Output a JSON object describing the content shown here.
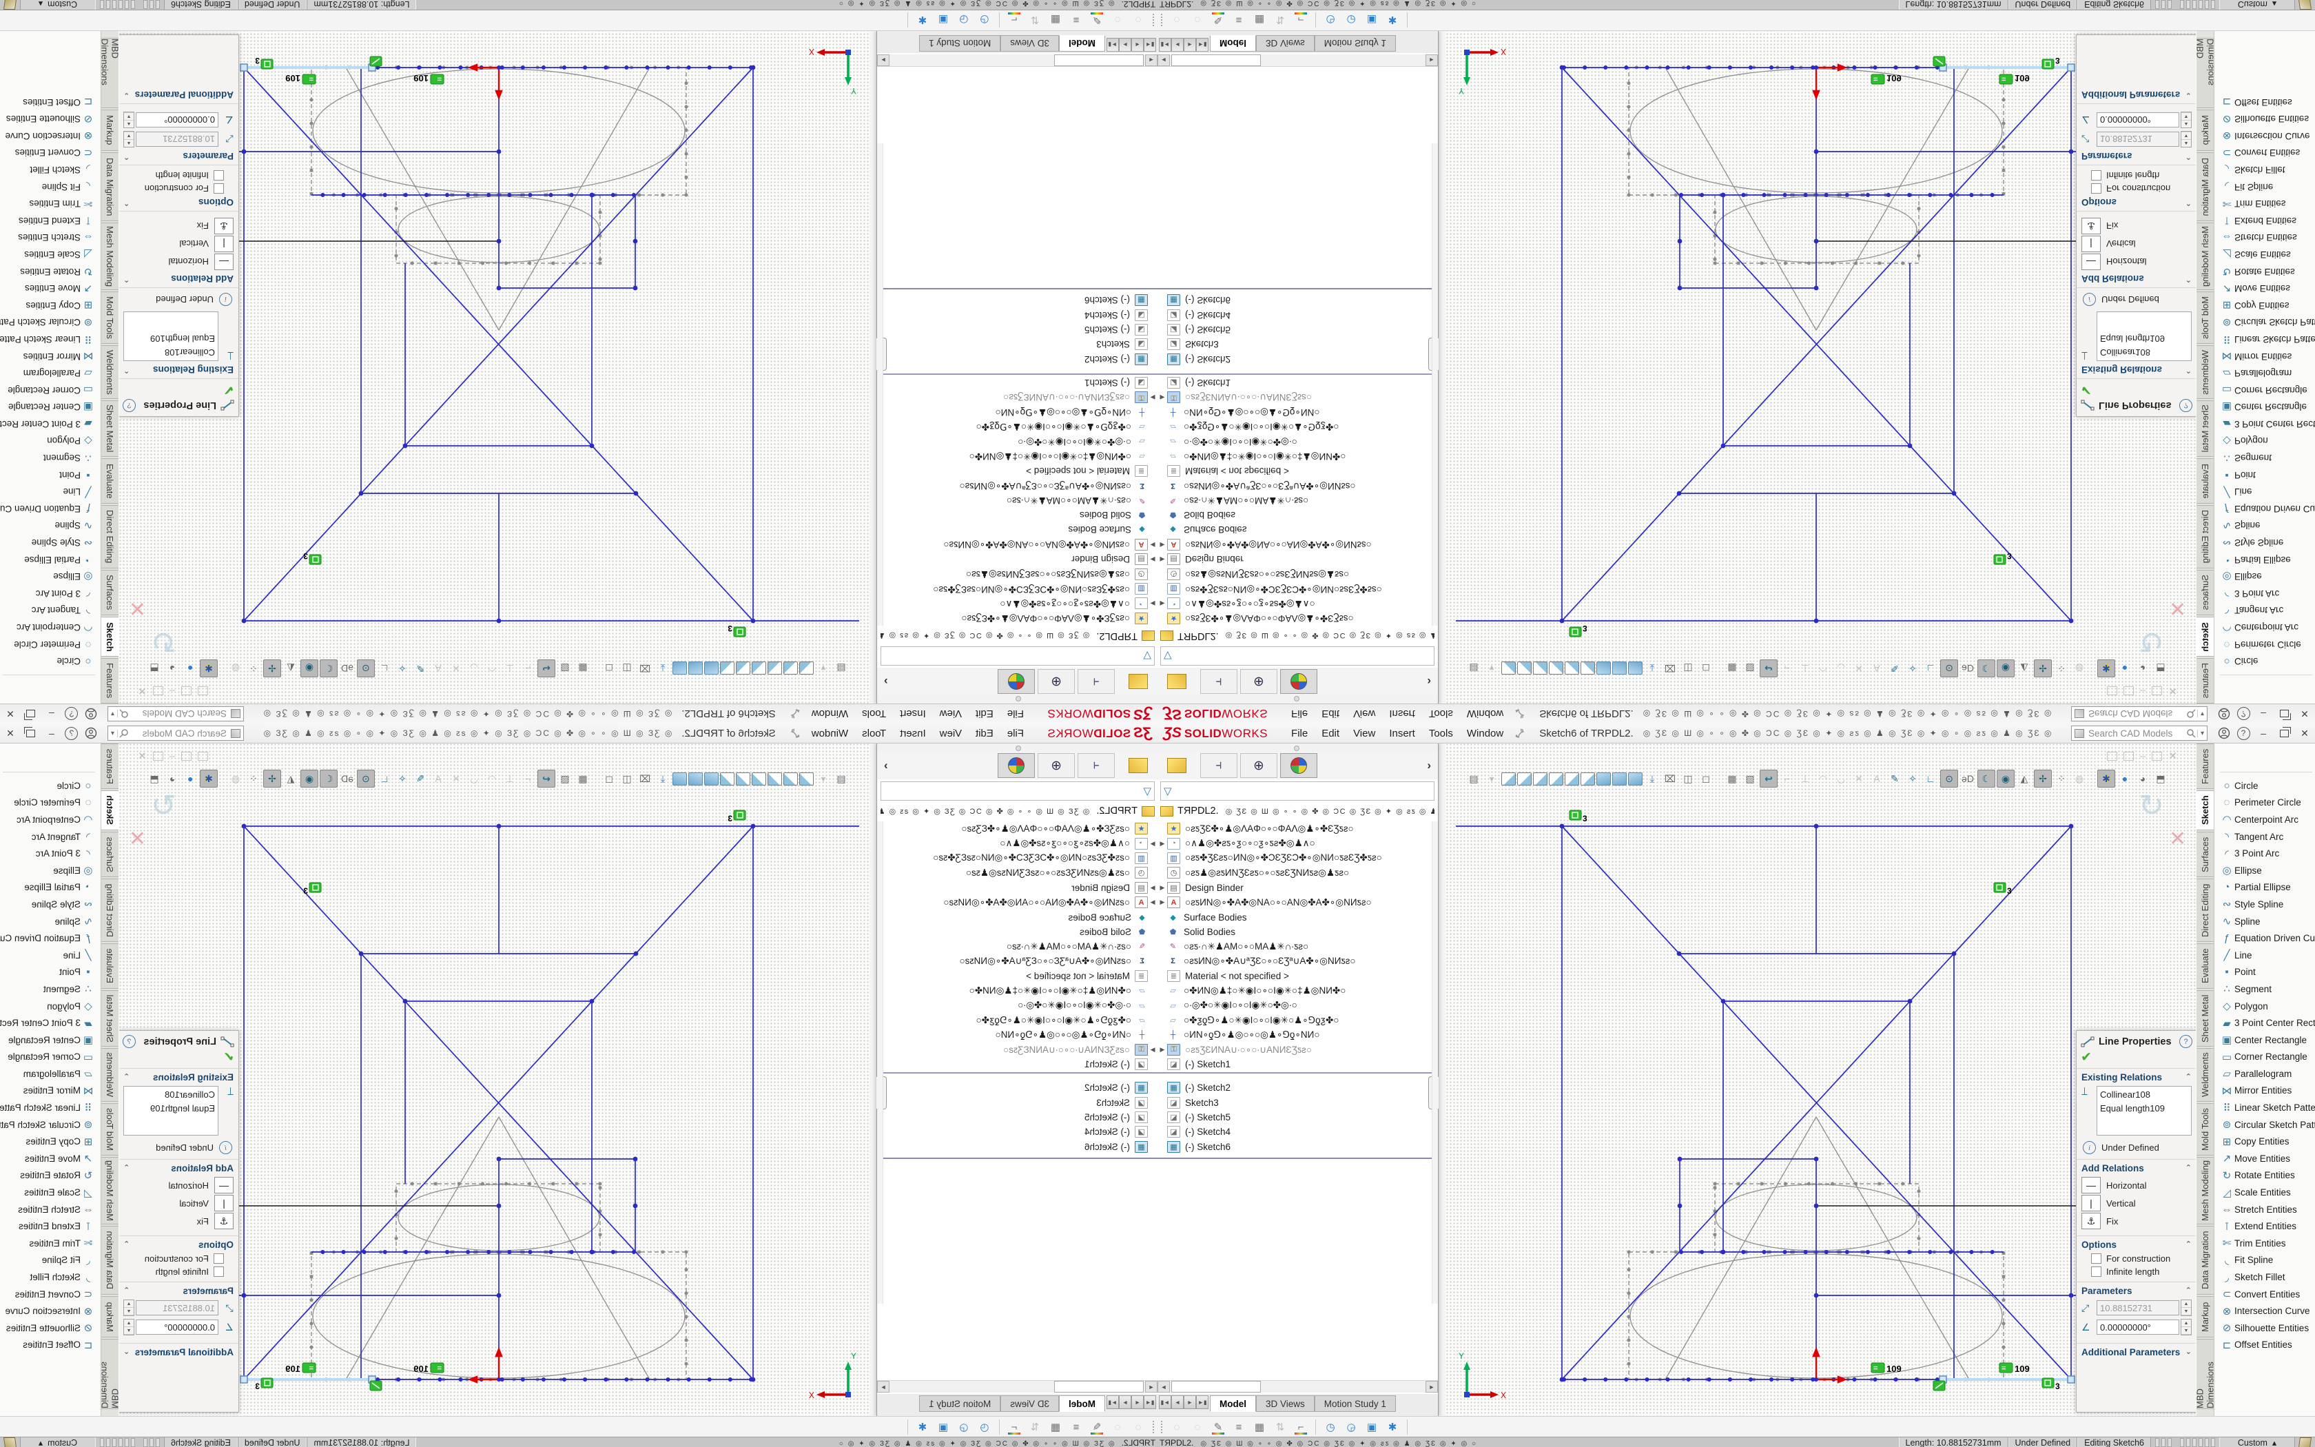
{
  "accent": {
    "sw_red": "#d0021b",
    "sketch_blue": "#2b2bc4",
    "construction_gray": "#8f8f8f",
    "selection_blue": "#b8dcf8",
    "relation_green": "#2fbe2f",
    "panel_header_navy": "#17456e"
  },
  "menubar": {
    "logo_mark": "ƷS",
    "logo_solid": "SOLID",
    "logo_works": "WORKS",
    "menus": [
      "File",
      "Edit",
      "View",
      "Insert",
      "Tools",
      "Window"
    ],
    "doc_title": "Sketch6 of TRPDL2.",
    "icon_garble": "◎ ƷƐ ◎ Ш ◎ ∘ ∘ ◎ ✤ ◎ ƆC ◎ ƷƐ ◎ ✦ ◎ ƨƽ ◎ ♟ ◎ ƷƐ ◎ ✦ ◎ ∘ ◎ ƨƽ ◎ ♟ ◎ ƷƐ ◎",
    "search_placeholder": "Search CAD Models",
    "window_buttons": {
      "minimize": "–",
      "restore": "",
      "close": "✕"
    }
  },
  "command_tabs": {
    "tabs": [
      {
        "label": "Features",
        "h": 64
      },
      {
        "label": "Sketch",
        "h": 56,
        "active": true
      },
      {
        "label": "Surfaces",
        "h": 64
      },
      {
        "label": "Direct Editing",
        "h": 90
      },
      {
        "label": "Evaluate",
        "h": 64
      },
      {
        "label": "Sheet Metal",
        "h": 80
      },
      {
        "label": "Weldments",
        "h": 76
      },
      {
        "label": "Mold Tools",
        "h": 74
      },
      {
        "label": "Mesh Modeling",
        "h": 96
      },
      {
        "label": "Data Migration",
        "h": 98
      },
      {
        "label": "Markup",
        "h": 58
      },
      {
        "label": "MBD Dimensions",
        "h": 100
      }
    ],
    "overflow_label": "⋯"
  },
  "sketch_tools": [
    {
      "name": "circle",
      "label": "Circle",
      "glyph": "○"
    },
    {
      "name": "perimeter-circle",
      "label": "Perimeter Circle",
      "glyph": "◌"
    },
    {
      "name": "centerpoint-arc",
      "label": "Centerpoint Arc",
      "glyph": "◠"
    },
    {
      "name": "tangent-arc",
      "label": "Tangent Arc",
      "glyph": "◝"
    },
    {
      "name": "3-point-arc",
      "label": "3 Point Arc",
      "glyph": "◜"
    },
    {
      "name": "ellipse",
      "label": "Ellipse",
      "glyph": "◎"
    },
    {
      "name": "partial-ellipse",
      "label": "Partial Ellipse",
      "glyph": "◔"
    },
    {
      "name": "style-spline",
      "label": "Style Spline",
      "glyph": "∾"
    },
    {
      "name": "spline",
      "label": "Spline",
      "glyph": "∿"
    },
    {
      "name": "equation-driven-curve",
      "label": "Equation Driven Curve",
      "glyph": "ƒ"
    },
    {
      "name": "line",
      "label": "Line",
      "glyph": "╱"
    },
    {
      "name": "point",
      "label": "Point",
      "glyph": "▪"
    },
    {
      "name": "segment",
      "label": "Segment",
      "glyph": "∴"
    },
    {
      "name": "polygon",
      "label": "Polygon",
      "glyph": "◇"
    },
    {
      "name": "3-point-center-rectangle",
      "label": "3 Point Center Recta...",
      "glyph": "▰"
    },
    {
      "name": "center-rectangle",
      "label": "Center Rectangle",
      "glyph": "▣"
    },
    {
      "name": "corner-rectangle",
      "label": "Corner Rectangle",
      "glyph": "▭"
    },
    {
      "name": "parallelogram",
      "label": "Parallelogram",
      "glyph": "▱"
    },
    {
      "name": "mirror-entities",
      "label": "Mirror Entities",
      "glyph": "⋈"
    },
    {
      "name": "linear-sketch-pattern",
      "label": "Linear Sketch Pattern",
      "glyph": "⠿"
    },
    {
      "name": "circular-sketch-pattern",
      "label": "Circular Sketch Pattern",
      "glyph": "⊚"
    },
    {
      "name": "copy-entities",
      "label": "Copy Entities",
      "glyph": "⊞"
    },
    {
      "name": "move-entities",
      "label": "Move Entities",
      "glyph": "↗"
    },
    {
      "name": "rotate-entities",
      "label": "Rotate Entities",
      "glyph": "↻"
    },
    {
      "name": "scale-entities",
      "label": "Scale Entities",
      "glyph": "◿"
    },
    {
      "name": "stretch-entities",
      "label": "Stretch Entities",
      "glyph": "⇔"
    },
    {
      "name": "extend-entities",
      "label": "Extend Entities",
      "glyph": "⊺"
    },
    {
      "name": "trim-entities",
      "label": "Trim Entities",
      "glyph": "✄"
    },
    {
      "name": "fit-spline",
      "label": "Fit Spline",
      "glyph": "◟"
    },
    {
      "name": "sketch-fillet",
      "label": "Sketch Fillet",
      "glyph": "◞"
    },
    {
      "name": "convert-entities",
      "label": "Convert Entities",
      "glyph": "⊂"
    },
    {
      "name": "intersection-curve",
      "label": "Intersection Curve",
      "glyph": "⊗"
    },
    {
      "name": "silhouette-entities",
      "label": "Silhouette Entities",
      "glyph": "⊘"
    },
    {
      "name": "offset-entities",
      "label": "Offset Entities",
      "glyph": "⊏"
    }
  ],
  "property_panel": {
    "title": "Line Properties",
    "help": "?",
    "check": "✔",
    "sections": {
      "existing_relations": "Existing Relations",
      "add_relations": "Add Relations",
      "options": "Options",
      "parameters": "Parameters",
      "additional_parameters": "Additional Parameters"
    },
    "relations": [
      "Collinear108",
      "Equal length109"
    ],
    "state_label": "Under Defined",
    "add_relation_buttons": [
      {
        "name": "horizontal",
        "label": "Horizontal",
        "glyph": "—"
      },
      {
        "name": "vertical",
        "label": "Vertical",
        "glyph": "|"
      },
      {
        "name": "fix",
        "label": "Fix",
        "glyph": "⚓"
      }
    ],
    "options": [
      "For construction",
      "Infinite length"
    ],
    "length_value": "10.88152731",
    "angle_value": "0.00000000°"
  },
  "feature_tree": {
    "part_name": "TЯPDL2.",
    "header_garble": "◎ ƷƐ ◎ Ш ◎ ∘ ∘ ◎ ✤ ◎ ƆC ◎ ƷƐ ◎ ✦ ◎ ƨƽ ◎ ♟ ◎ ƷƐ",
    "tab_icons": [
      "part-icon",
      "display-manager-icon",
      "property-manager-icon",
      "appearances-icon"
    ],
    "items": [
      {
        "icon": "history",
        "cls": "ti-hist",
        "glyph": "★",
        "label": "○ƨƽƷƐ✤∘♟◎ΛAΦ○∘○ΦAΛ◎♟∘✤ƐƷƽƨ○"
      },
      {
        "icon": "sensors",
        "cls": "ti-sens",
        "glyph": "◔",
        "label": "○∧♟◎✤ƨƽ∘ƺ○∘○ƺ∘ƽƨ✤◎♟∧○",
        "arrow": true
      },
      {
        "icon": "selection",
        "cls": "ti-chart",
        "glyph": "▥",
        "label": "○ƨƽ✤ƷƐƨƽ○ИΝ◎∘✤ƆƐƷƐƆ✤∘◎ΝИ○ƽƨƐƷ✤ƽƨ○"
      },
      {
        "icon": "comments",
        "cls": "ti-clock",
        "glyph": "◷",
        "label": "○ƨƽ♟◎ƨƽИΝƷƐƨƽ○∘○ƽƨƐƷΝИƽƨ◎♟ƽƨ○"
      },
      {
        "icon": "design-binder",
        "cls": "ti-page",
        "glyph": "▤",
        "label": "Design Binder",
        "arrow": true
      },
      {
        "icon": "annotations",
        "cls": "ti-annot",
        "glyph": "A",
        "label": "○ƨƽИΝ◎∘✤A✤◎ΝA○∘○AΝ◎✤A✤∘◎ΝИƽƨ○",
        "arrow": true
      },
      {
        "icon": "surface-bodies",
        "cls": "ti-surf",
        "glyph": "◆",
        "label": "Surface Bodies"
      },
      {
        "icon": "solid-bodies",
        "cls": "ti-solid",
        "glyph": "⬟",
        "label": "Solid Bodies"
      },
      {
        "icon": "markups",
        "cls": "ti-markup",
        "glyph": "✎",
        "label": "○ƨƽ∙∩✳♟AM○∘○MA♟✳∩∙ƽƨ○"
      },
      {
        "icon": "equations",
        "cls": "ti-eq",
        "glyph": "Σ",
        "label": "○ƨƽИΝ◎∘✤A∪ªƷƐ○∘○ƐƷª∪A✤∘◎ΝИƽƨ○"
      },
      {
        "icon": "material",
        "cls": "ti-mat",
        "glyph": "≣",
        "label": "Material  < not specified >"
      },
      {
        "icon": "front-plane",
        "cls": "ti-plane",
        "glyph": "▱",
        "label": "○✤ИΝ◎♟‡○✳◉I○∘○I◉✳○‡♟◎ΝИ✤○"
      },
      {
        "icon": "top-plane",
        "cls": "ti-plane",
        "glyph": "▱",
        "label": "○∙◎✤○✳◉I○∘○I◉✳○✤◎∙○"
      },
      {
        "icon": "right-plane",
        "cls": "ti-plane",
        "glyph": "▱",
        "label": "○✤ƺƍ⅁∘♟○✳◉I○∘○I◉✳○♟∘⅁ƍƺ✤○"
      },
      {
        "icon": "origin",
        "cls": "ti-origin",
        "glyph": "┼",
        "label": "○ИΝ∘ƍ⅁∘♟◎○∘○◎♟∘⅁ƍ∘ΝИ○"
      },
      {
        "icon": "locked-folder",
        "cls": "ti-flock",
        "glyph": "⚿",
        "label": "○ƨƽƷƐИΝA∪∙○∘○∙∪AΝИƐƷƽƨ○",
        "arrow": true,
        "gray": true
      },
      {
        "icon": "sketch1",
        "cls": "ti-sk",
        "glyph": "◪",
        "label": "(-) Sketch1"
      }
    ],
    "items_below_split": [
      {
        "icon": "sketch2",
        "cls": "ti-sk active",
        "glyph": "▦",
        "label": "(-) Sketch2"
      },
      {
        "icon": "sketch3",
        "cls": "ti-sk",
        "glyph": "◪",
        "label": "Sketch3"
      },
      {
        "icon": "sketch5",
        "cls": "ti-sk",
        "glyph": "◪",
        "label": "(-) Sketch5"
      },
      {
        "icon": "sketch4",
        "cls": "ti-sk",
        "glyph": "◪",
        "label": "(-) Sketch4"
      },
      {
        "icon": "sketch6",
        "cls": "ti-sk active",
        "glyph": "▦",
        "label": "(-) Sketch6"
      }
    ]
  },
  "doc_tabs": {
    "vcr_buttons": [
      "▮◄",
      "◄",
      "►",
      "►▮"
    ],
    "tabs": [
      {
        "label": "Model",
        "active": true
      },
      {
        "label": "3D Views",
        "active": false
      },
      {
        "label": "Motion Study 1",
        "active": false
      }
    ]
  },
  "headsup_icons": [
    {
      "n": "new-view-icon",
      "g": "▤",
      "c": ""
    },
    {
      "n": "flyout-caret-icon",
      "g": "▾",
      "c": "ghost"
    },
    {
      "n": "view-front-cube-icon",
      "g": "",
      "c": "cube-o"
    },
    {
      "n": "view-back-cube-icon",
      "g": "",
      "c": "cube-o"
    },
    {
      "n": "view-left-cube-icon",
      "g": "",
      "c": "cube-o"
    },
    {
      "n": "view-right-cube-icon",
      "g": "",
      "c": "cube-o"
    },
    {
      "n": "view-top-cube-icon",
      "g": "",
      "c": "cube-o"
    },
    {
      "n": "view-bottom-cube-icon",
      "g": "",
      "c": "cube-o"
    },
    {
      "n": "view-isometric-cube-icon",
      "g": "",
      "c": "cube-s"
    },
    {
      "n": "view-dimetric-cube-icon",
      "g": "",
      "c": "cube-s"
    },
    {
      "n": "view-trimetric-cube-icon",
      "g": "",
      "c": "cube-s"
    },
    {
      "n": "normal-to-icon",
      "g": "⤓",
      "c": "blue"
    },
    {
      "n": "link-views-icon",
      "g": "⌧",
      "c": ""
    },
    {
      "n": "section-view-icon",
      "g": "◫",
      "c": ""
    },
    {
      "n": "display-style-icon",
      "g": "◻",
      "c": ""
    },
    {
      "n": "gap1",
      "g": "",
      "c": "gap"
    },
    {
      "n": "save-icon",
      "g": "▦",
      "c": ""
    },
    {
      "n": "zebra-stripes-icon",
      "g": "▧",
      "c": ""
    },
    {
      "n": "exit-sketch-icon",
      "g": "↩",
      "c": "pressed teal"
    },
    {
      "n": "smart-dimension-icon",
      "g": "⌐",
      "c": "ghost"
    },
    {
      "n": "perpendicular-dim-icon",
      "g": "⊥",
      "c": "ghost"
    },
    {
      "n": "arc-ghost-icon",
      "g": "◠",
      "c": "ghost"
    },
    {
      "n": "arc2-ghost-icon",
      "g": "◡",
      "c": "ghost"
    },
    {
      "n": "delete-ghost-icon",
      "g": "✕",
      "c": "ghost"
    },
    {
      "n": "text-ghost-icon",
      "g": "A",
      "c": "ghost"
    },
    {
      "n": "pencil-icon",
      "g": "✎",
      "c": "teal"
    },
    {
      "n": "wand-icon",
      "g": "✧",
      "c": "teal"
    },
    {
      "n": "add-relation-icon",
      "g": "∟",
      "c": "teal"
    },
    {
      "n": "view-sketch-relations-icon",
      "g": "⊙",
      "c": "pressed"
    },
    {
      "n": "3d-drawing-view-icon",
      "g": "ǝD",
      "c": ""
    },
    {
      "n": "curve-visibility-icon",
      "g": "☾",
      "c": "pressed"
    },
    {
      "n": "point-visibility-icon",
      "g": "◉",
      "c": "pressed"
    },
    {
      "n": "plane-visibility-icon",
      "g": "◭",
      "c": ""
    },
    {
      "n": "move-visibility-icon",
      "g": "✢",
      "c": "pressed"
    },
    {
      "n": "grid-icon",
      "g": "⁘",
      "c": ""
    },
    {
      "n": "orbit-icon",
      "g": "◍",
      "c": "ghost"
    },
    {
      "n": "gap2",
      "g": "",
      "c": "gap"
    },
    {
      "n": "render-tools-icon",
      "g": "✱",
      "c": "colorful"
    },
    {
      "n": "sphere-blue-icon",
      "g": "●",
      "c": "blue"
    },
    {
      "n": "sphere-gray-icon",
      "g": "◕",
      "c": ""
    },
    {
      "n": "cube-gray-icon",
      "g": "⬒",
      "c": ""
    }
  ],
  "ghost_window_buttons": [
    "▫",
    "▫",
    "–",
    "❏",
    "✕"
  ],
  "confirmation_corner": {
    "glyph": "↻",
    "cancel": "✕"
  },
  "bottom_toolbar": [
    {
      "n": "hide-all-types-icon",
      "g": "◌",
      "c": "ghost"
    },
    {
      "n": "hide-bodies-icon",
      "g": "◌",
      "c": "ghost"
    },
    {
      "n": "annotation-pen-icon",
      "g": "✎",
      "c": "rainbow"
    },
    {
      "n": "layer-list-icon",
      "g": "≡",
      "c": ""
    },
    {
      "n": "grid-table-icon",
      "g": "▦",
      "c": ""
    },
    {
      "n": "reorder-icon",
      "g": "⇅",
      "c": "ghost"
    },
    {
      "n": "datum-rainbow-icon",
      "g": "⌐",
      "c": "rainbow"
    },
    {
      "n": "divider",
      "g": "",
      "c": "div"
    },
    {
      "n": "camera-check-icon",
      "g": "◷",
      "c": "blue"
    },
    {
      "n": "timer-icon",
      "g": "◶",
      "c": "blue"
    },
    {
      "n": "folder-check-icon",
      "g": "▣",
      "c": "blue"
    },
    {
      "n": "gear-icon",
      "g": "✱",
      "c": "blue"
    },
    {
      "n": "divider2",
      "g": "",
      "c": "div"
    }
  ],
  "status_bar": {
    "part_label": "TЯPDL2.",
    "garble": "◎ ƷƐ ◎ Ш ◎ ∘ ∘ ◎ ✤ ◎ ƆC ◎ ƷƐ ◎ ✦ ◎ ƨƽ ◎ ♟ ◎ ƷƐ ◎ ✦ ◎   ○    ◎    ○   ◎ ✦ ◎ ƷƐ ◎ ♟ ◎ ƨƽ ◎ ✦ ◎ ƷƐ ◎ ƆC ◎ ✤ ◎ ∘ ∘ ◎ Ш ◎ ƷƐ ◎ ⸱⸱",
    "length_label": "Length: 10.88152731mm",
    "state_label": "Under Defined",
    "editing_label": "Editing Sketch6",
    "custom_label": "Custom",
    "custom_caret": "▴"
  },
  "viewport": {
    "badges": [
      {
        "type": "square",
        "label": "3"
      },
      {
        "type": "square",
        "label": "3"
      },
      {
        "type": "equal",
        "label": "109"
      },
      {
        "type": "equal",
        "label": "109"
      },
      {
        "type": "slash",
        "label": ""
      },
      {
        "type": "square",
        "label": "3"
      }
    ],
    "triad": {
      "x_label": "X",
      "y_label": "Y"
    }
  }
}
